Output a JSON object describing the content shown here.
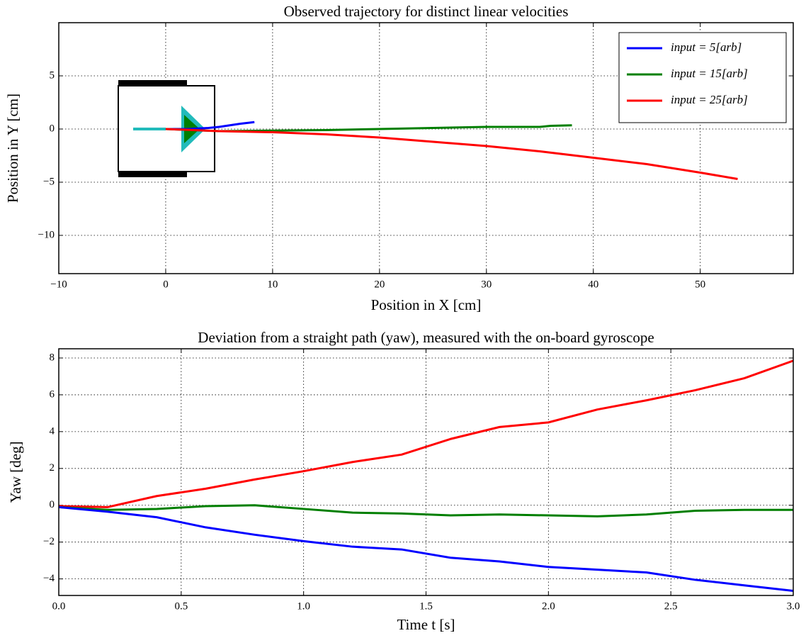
{
  "chart_data": [
    {
      "type": "line",
      "title": "Observed trajectory for distinct linear velocities",
      "xlabel": "Position in X [cm]",
      "ylabel": "Position in Y [cm]",
      "xlim": [
        -10,
        58.7
      ],
      "ylim": [
        -13.6,
        10
      ],
      "xticks": [
        {
          "value": -10,
          "label": "−10"
        },
        0,
        10,
        20,
        30,
        40,
        50
      ],
      "yticks": [
        {
          "value": -10,
          "label": "−10"
        },
        {
          "value": -5,
          "label": "−5"
        },
        0,
        5
      ],
      "grid": true,
      "legend": "upper right",
      "series": [
        {
          "name": "input = 5[arb]",
          "color": "#0000ff",
          "x": [
            0,
            2,
            4,
            5,
            6,
            7,
            8.3
          ],
          "values": [
            0,
            0,
            0.1,
            0.2,
            0.35,
            0.5,
            0.65
          ]
        },
        {
          "name": "input = 15[arb]",
          "color": "#007f00",
          "x": [
            0,
            5,
            10,
            15,
            20,
            25,
            30,
            35,
            36,
            38
          ],
          "values": [
            0,
            -0.2,
            -0.15,
            -0.1,
            0,
            0.1,
            0.2,
            0.2,
            0.3,
            0.35
          ]
        },
        {
          "name": "input = 25[arb]",
          "color": "#ff0000",
          "x": [
            0,
            5,
            10,
            15,
            20,
            25,
            30,
            35,
            40,
            45,
            50,
            53.5
          ],
          "values": [
            0,
            -0.2,
            -0.3,
            -0.5,
            -0.8,
            -1.2,
            -1.6,
            -2.1,
            -2.7,
            -3.3,
            -4.1,
            -4.7
          ]
        }
      ]
    },
    {
      "type": "line",
      "title": "Deviation from a straight path (yaw), measured with the on-board gyroscope",
      "xlabel": "Time t [s]",
      "ylabel": "Yaw [deg]",
      "xlim": [
        0,
        3
      ],
      "ylim": [
        -4.9,
        8.5
      ],
      "xticks": [
        {
          "value": 0,
          "label": "0.0"
        },
        0.5,
        {
          "value": 1,
          "label": "1.0"
        },
        1.5,
        {
          "value": 2,
          "label": "2.0"
        },
        2.5,
        {
          "value": 3,
          "label": "3.0"
        }
      ],
      "yticks": [
        {
          "value": -4,
          "label": "−4"
        },
        {
          "value": -2,
          "label": "−2"
        },
        0,
        2,
        4,
        6,
        8
      ],
      "grid": true,
      "x": [
        0,
        0.2,
        0.4,
        0.6,
        0.8,
        1.0,
        1.2,
        1.4,
        1.6,
        1.8,
        2.0,
        2.2,
        2.4,
        2.6,
        2.8,
        3.0
      ],
      "series": [
        {
          "color": "#ff0000",
          "values": [
            -0.05,
            -0.1,
            0.5,
            0.9,
            1.4,
            1.85,
            2.35,
            2.75,
            3.6,
            4.25,
            4.5,
            5.2,
            5.7,
            6.25,
            6.9,
            7.85
          ]
        },
        {
          "color": "#007f00",
          "values": [
            -0.1,
            -0.25,
            -0.2,
            -0.05,
            0,
            -0.2,
            -0.4,
            -0.45,
            -0.55,
            -0.5,
            -0.55,
            -0.6,
            -0.5,
            -0.3,
            -0.25,
            -0.25
          ]
        },
        {
          "color": "#0000ff",
          "values": [
            -0.1,
            -0.35,
            -0.65,
            -1.2,
            -1.6,
            -1.95,
            -2.25,
            -2.4,
            -2.85,
            -3.05,
            -3.35,
            -3.5,
            -3.65,
            -4.05,
            -4.35,
            -4.65
          ]
        }
      ]
    }
  ]
}
